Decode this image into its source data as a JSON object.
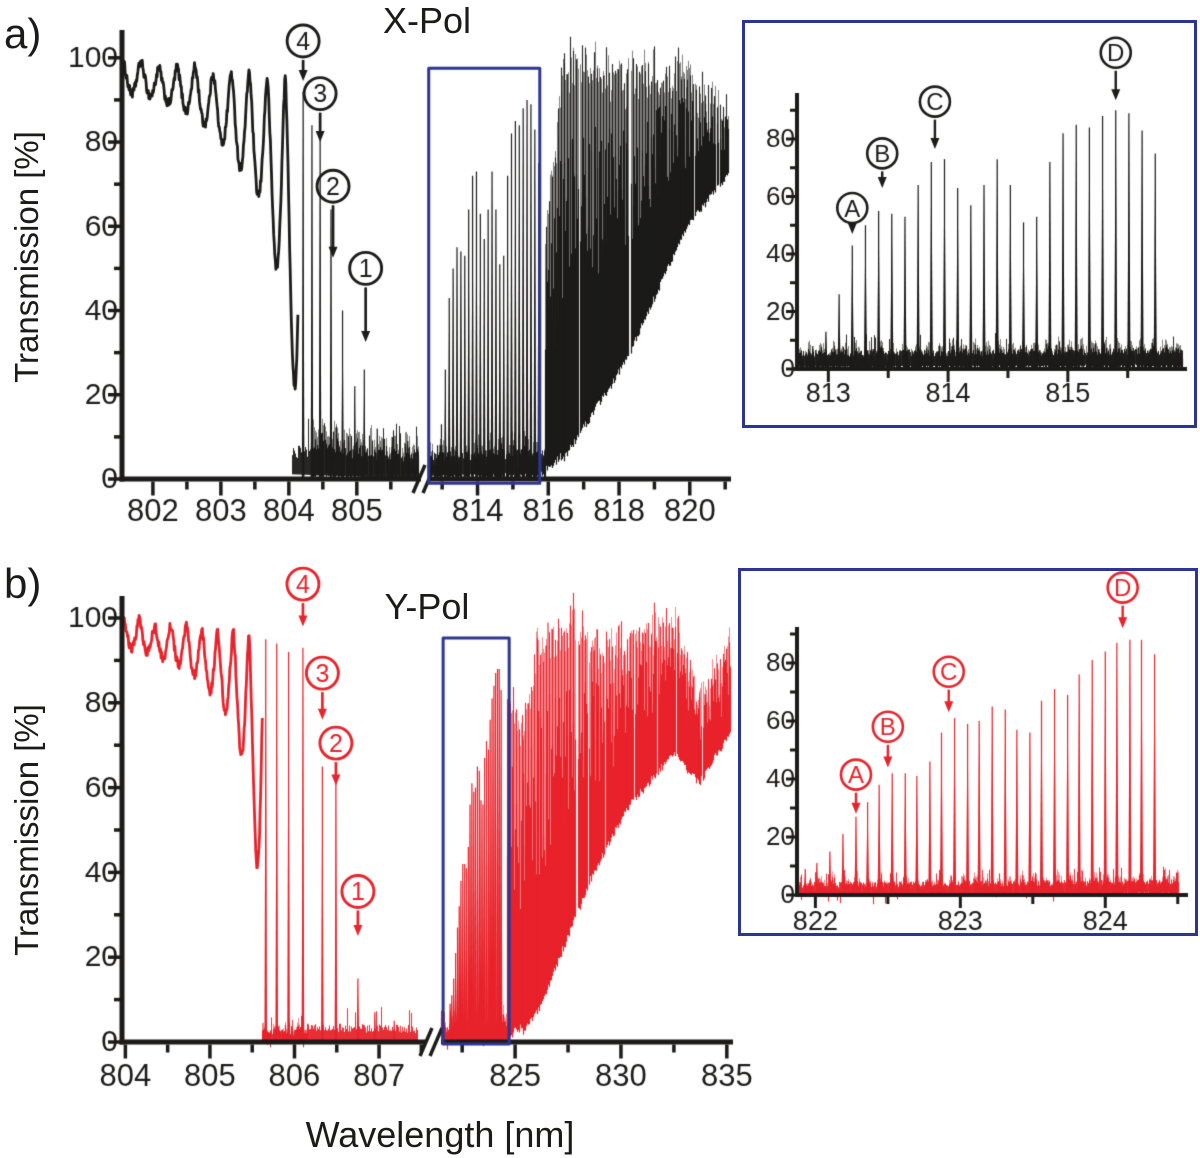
{
  "figure": {
    "xlabel": "Wavelength [nm]",
    "colors": {
      "black": "#1c1b1a",
      "red": "#e8232b",
      "navy": "#2c3692",
      "background": "#ffffff"
    },
    "panels": [
      {
        "key": "a",
        "label": "a)",
        "title": "X-Pol",
        "ylabel": "Transmission [%]"
      },
      {
        "key": "b",
        "label": "b)",
        "title": "Y-Pol",
        "ylabel": "Transmission [%]"
      }
    ]
  },
  "chart_data": [
    {
      "id": "a-main",
      "type": "line",
      "series": "X-Pol transmission",
      "color": "#1c1b1a",
      "annotation_color": "#1c1b1a",
      "title": "X-Pol",
      "ylabel": "Transmission [%]",
      "xlabel": "Wavelength [nm]",
      "ylim": [
        0,
        105
      ],
      "yticks": [
        0,
        20,
        40,
        60,
        80,
        100
      ],
      "xticks": [
        [
          802,
          803,
          804,
          805
        ],
        [
          814,
          816,
          818,
          820
        ]
      ],
      "x_break_gap": [
        805.9,
        812.6
      ],
      "segments": [
        {
          "t": "fringes",
          "wl": [
            801.56,
            804.14
          ],
          "period": 0.265,
          "top": [
            99,
            95.5
          ],
          "dips": [
            91,
            92,
            90,
            88.5,
            86.5,
            83,
            78,
            72,
            65,
            45,
            15
          ]
        },
        {
          "t": "forest",
          "wl": [
            804.32,
            805.9
          ],
          "bot": [
            0.4,
            0.4
          ],
          "top": [
            12,
            8
          ]
        },
        {
          "t": "peaks",
          "wl": [
            804.05,
            805.9
          ],
          "base": [
            5,
            4
          ],
          "noise": 3,
          "peaks": [
            [
              804.21,
              92
            ],
            [
              804.34,
              84
            ],
            [
              804.46,
              82
            ],
            [
              804.62,
              64
            ],
            [
              804.79,
              40
            ],
            [
              804.97,
              22
            ],
            [
              805.11,
              26
            ],
            [
              805.3,
              12
            ],
            [
              805.52,
              10
            ],
            [
              805.75,
              9
            ]
          ]
        },
        {
          "t": "forest",
          "wl": [
            812.6,
            815.9
          ],
          "bot": [
            0.3,
            0.3
          ],
          "top": [
            7,
            9
          ]
        },
        {
          "t": "peaks",
          "wl": [
            812.6,
            815.9
          ],
          "base": [
            4,
            5
          ],
          "noise": 2.5,
          "peaks_from": "a-inset"
        },
        {
          "t": "forest",
          "wl": [
            815.9,
            816.45
          ],
          "bot": [
            2,
            6
          ],
          "top": [
            60,
            103
          ]
        },
        {
          "t": "forest",
          "wl": [
            816.45,
            818.2
          ],
          "bot": [
            5,
            28
          ],
          "top": [
            103,
            99
          ]
        },
        {
          "t": "forest",
          "wl": [
            818.2,
            819.9
          ],
          "bot": [
            28,
            60
          ],
          "top": [
            100,
            100
          ]
        },
        {
          "t": "forest",
          "wl": [
            819.9,
            821.08
          ],
          "bot": [
            60,
            72
          ],
          "top": [
            100,
            89
          ]
        }
      ],
      "annotations": [
        {
          "label": "4",
          "wl": 804.21,
          "peak": 92,
          "tip": 94.5,
          "circle": 104
        },
        {
          "label": "3",
          "wl": 804.46,
          "peak": 82,
          "tip": 80,
          "circle": 91.5
        },
        {
          "label": "2",
          "wl": 804.65,
          "peak": 64,
          "tip": 52.5,
          "circle": 69.5
        },
        {
          "label": "1",
          "wl": 805.13,
          "peak": 26,
          "tip": 32.5,
          "circle": 50
        }
      ],
      "box": {
        "wl": [
          812.62,
          815.76
        ],
        "v": [
          -1.0,
          97.5
        ]
      }
    },
    {
      "id": "a-inset",
      "type": "line",
      "series": "X-Pol zoom 813-815 nm",
      "color": "#1c1b1a",
      "annotation_color": "#1c1b1a",
      "ylim": [
        0,
        93
      ],
      "yticks": [
        0,
        20,
        40,
        60,
        80
      ],
      "xticks": [
        [
          813,
          814,
          815
        ]
      ],
      "segments": [
        {
          "t": "forest",
          "wl": [
            812.73,
            815.95
          ],
          "bot": [
            0.3,
            0.3
          ],
          "top": [
            6.5,
            8.5
          ]
        },
        {
          "t": "peaks",
          "wl": [
            812.73,
            815.95
          ],
          "base": [
            4,
            5
          ],
          "noise": 2.5,
          "peaks": [
            [
              812.87,
              8
            ],
            [
              812.98,
              13
            ],
            [
              813.09,
              26
            ],
            [
              813.2,
              43
            ],
            [
              813.31,
              50
            ],
            [
              813.42,
              55
            ],
            [
              813.53,
              54
            ],
            [
              813.64,
              53
            ],
            [
              813.75,
              64
            ],
            [
              813.86,
              72
            ],
            [
              813.97,
              73
            ],
            [
              814.08,
              63
            ],
            [
              814.19,
              57
            ],
            [
              814.3,
              64
            ],
            [
              814.41,
              73
            ],
            [
              814.52,
              64
            ],
            [
              814.63,
              51
            ],
            [
              814.74,
              53
            ],
            [
              814.85,
              72
            ],
            [
              814.96,
              82
            ],
            [
              815.07,
              85
            ],
            [
              815.18,
              84
            ],
            [
              815.29,
              88
            ],
            [
              815.4,
              90
            ],
            [
              815.51,
              89
            ],
            [
              815.62,
              83
            ],
            [
              815.73,
              75
            ]
          ]
        }
      ],
      "annotations": [
        {
          "label": "A",
          "wl": 813.2,
          "peak": 43,
          "tip": 47,
          "circle": 56
        },
        {
          "label": "B",
          "wl": 813.45,
          "peak": 55,
          "tip": 63,
          "circle": 75
        },
        {
          "label": "C",
          "wl": 813.89,
          "peak": 72,
          "tip": 76.5,
          "circle": 93
        },
        {
          "label": "D",
          "wl": 815.4,
          "peak": 90,
          "tip": 93.5,
          "circle": 110
        }
      ]
    },
    {
      "id": "b-main",
      "type": "line",
      "series": "Y-Pol transmission",
      "color": "#e8232b",
      "annotation_color": "#e8232b",
      "title": "Y-Pol",
      "ylabel": "Transmission [%]",
      "xlabel": "Wavelength [nm]",
      "ylim": [
        0,
        105
      ],
      "yticks": [
        0,
        20,
        40,
        60,
        80,
        100
      ],
      "xticks": [
        [
          804,
          805,
          806,
          807
        ],
        [
          825,
          830,
          835
        ]
      ],
      "x_break_gap": [
        807.5,
        821.5
      ],
      "segments": [
        {
          "t": "fringes",
          "wl": [
            803.98,
            805.62
          ],
          "period": 0.185,
          "top": [
            99.5,
            96
          ],
          "dips": [
            93,
            92.5,
            91.5,
            90,
            88,
            85.5,
            81,
            76,
            63,
            30
          ]
        },
        {
          "t": "forest",
          "wl": [
            805.62,
            806.15
          ],
          "bot": [
            0.3,
            0.3
          ],
          "top": [
            3,
            3
          ]
        },
        {
          "t": "peaks",
          "wl": [
            805.62,
            806.15
          ],
          "base": [
            1.5,
            1.5
          ],
          "noise": 1.5,
          "peaks": [
            [
              805.66,
              95
            ],
            [
              805.79,
              94
            ],
            [
              805.93,
              92
            ],
            [
              806.1,
              93
            ]
          ]
        },
        {
          "t": "peaks",
          "wl": [
            806.15,
            807.45
          ],
          "base": [
            2.5,
            2
          ],
          "noise": 2,
          "peaks": [
            [
              806.33,
              65
            ],
            [
              806.49,
              63
            ],
            [
              806.75,
              15
            ],
            [
              806.95,
              7
            ],
            [
              807.18,
              5
            ]
          ]
        },
        {
          "t": "forest",
          "wl": [
            821.5,
            824.6
          ],
          "bot": [
            0.3,
            0.3
          ],
          "top": [
            4,
            7
          ]
        },
        {
          "t": "peaks",
          "wl": [
            821.5,
            824.6
          ],
          "base": [
            2,
            3
          ],
          "noise": 2,
          "peaks_from": "b-inset"
        },
        {
          "t": "forest",
          "wl": [
            824.6,
            825.35
          ],
          "bot": [
            1,
            4
          ],
          "top": [
            88,
            76
          ]
        },
        {
          "t": "forest",
          "wl": [
            825.35,
            826.05
          ],
          "bot": [
            2,
            7
          ],
          "top": [
            76,
            96
          ]
        },
        {
          "t": "forest",
          "wl": [
            826.05,
            827.75
          ],
          "bot": [
            7,
            28
          ],
          "top": [
            96,
            103
          ]
        },
        {
          "t": "forest",
          "wl": [
            827.75,
            828.7
          ],
          "bot": [
            28,
            40
          ],
          "top": [
            103,
            95
          ]
        },
        {
          "t": "forest",
          "wl": [
            828.7,
            830.3
          ],
          "bot": [
            40,
            55
          ],
          "top": [
            95,
            98
          ]
        },
        {
          "t": "forest",
          "wl": [
            830.3,
            832.45
          ],
          "bot": [
            55,
            68
          ],
          "top": [
            98,
            104
          ]
        },
        {
          "t": "forest",
          "wl": [
            832.45,
            833.7
          ],
          "bot": [
            68,
            61
          ],
          "top": [
            104,
            84
          ]
        },
        {
          "t": "forest",
          "wl": [
            833.7,
            835.15
          ],
          "bot": [
            61,
            73
          ],
          "top": [
            84,
            97
          ]
        }
      ],
      "annotations": [
        {
          "label": "4",
          "wl": 806.1,
          "peak": 93,
          "tip": 98,
          "circle": 108
        },
        {
          "label": "3",
          "wl": 806.33,
          "peak": 65,
          "tip": 76,
          "circle": 87
        },
        {
          "label": "2",
          "wl": 806.49,
          "peak": 63,
          "tip": 60.5,
          "circle": 70.5
        },
        {
          "label": "1",
          "wl": 806.75,
          "peak": 15,
          "tip": 25,
          "circle": 35.5
        }
      ],
      "box": {
        "wl": [
          821.6,
          824.72
        ],
        "v": [
          -0.5,
          95.3
        ]
      }
    },
    {
      "id": "b-inset",
      "type": "line",
      "series": "Y-Pol zoom 822-824 nm",
      "color": "#e8232b",
      "annotation_color": "#e8232b",
      "ylim": [
        0,
        92
      ],
      "yticks": [
        0,
        20,
        40,
        60,
        80
      ],
      "xticks": [
        [
          822,
          823,
          824
        ]
      ],
      "segments": [
        {
          "t": "forest",
          "wl": [
            821.88,
            824.5
          ],
          "bot": [
            0.2,
            0.2
          ],
          "top": [
            4.5,
            6
          ]
        },
        {
          "t": "peaks",
          "wl": [
            821.88,
            824.5
          ],
          "base": [
            2.5,
            3.5
          ],
          "noise": 2,
          "peaks": [
            [
              821.93,
              9
            ],
            [
              822.01,
              11
            ],
            [
              822.1,
              15
            ],
            [
              822.19,
              21
            ],
            [
              822.28,
              27
            ],
            [
              822.36,
              32
            ],
            [
              822.44,
              38
            ],
            [
              822.53,
              42
            ],
            [
              822.62,
              42
            ],
            [
              822.7,
              41
            ],
            [
              822.79,
              46
            ],
            [
              822.87,
              56
            ],
            [
              822.96,
              61
            ],
            [
              823.05,
              59
            ],
            [
              823.13,
              60
            ],
            [
              823.22,
              65
            ],
            [
              823.31,
              64
            ],
            [
              823.39,
              57
            ],
            [
              823.48,
              56
            ],
            [
              823.56,
              67
            ],
            [
              823.65,
              71
            ],
            [
              823.74,
              69
            ],
            [
              823.82,
              76
            ],
            [
              823.91,
              81
            ],
            [
              824.0,
              84
            ],
            [
              824.08,
              87
            ],
            [
              824.17,
              88
            ],
            [
              824.25,
              88
            ],
            [
              824.34,
              83
            ]
          ]
        }
      ],
      "annotations": [
        {
          "label": "A",
          "wl": 822.28,
          "peak": 27,
          "tip": 28,
          "circle": 41.5
        },
        {
          "label": "B",
          "wl": 822.5,
          "peak": 42,
          "tip": 44,
          "circle": 58
        },
        {
          "label": "C",
          "wl": 822.92,
          "peak": 56,
          "tip": 63,
          "circle": 77
        },
        {
          "label": "D",
          "wl": 824.12,
          "peak": 87,
          "tip": 92,
          "circle": 106
        }
      ]
    }
  ]
}
